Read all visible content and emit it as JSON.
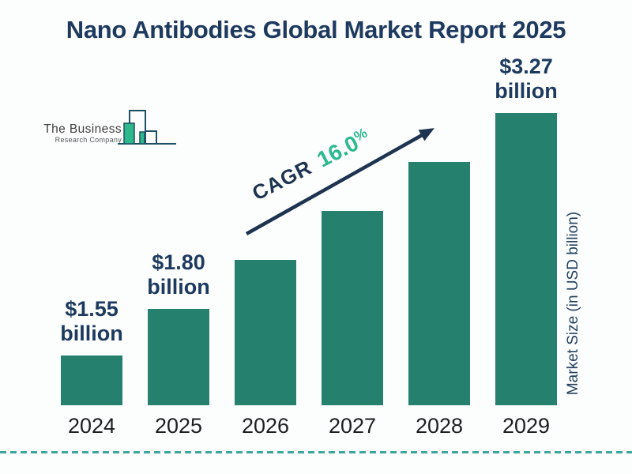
{
  "title": "Nano Antibodies Global Market Report 2025",
  "logo": {
    "name_line1": "The Business",
    "name_line2": "Research Company"
  },
  "annotation": {
    "cagr_label": "CAGR",
    "cagr_value": "16.0",
    "cagr_percent_sign": "%"
  },
  "y_axis_label": "Market Size (in USD billion)",
  "colors": {
    "bar": "#26806E",
    "title_text": "#1D3A5E",
    "value_label_text": "#1D3A5E",
    "year_label_text": "#1C1E21",
    "cagr_green": "#2DB98C",
    "arrow_navy": "#1E3350",
    "dashed_line": "#3EA79D",
    "logo_green": "#2DB98C",
    "logo_outline": "#1E4F63"
  },
  "chart_data": {
    "type": "bar",
    "title": "Nano Antibodies Global Market Report 2025",
    "categories": [
      "2024",
      "2025",
      "2026",
      "2027",
      "2028",
      "2029"
    ],
    "values": [
      1.55,
      1.8,
      2.09,
      2.42,
      2.81,
      3.27
    ],
    "unit": "USD billion",
    "xlabel": "",
    "ylabel": "Market Size (in USD billion)",
    "bar_value_labels": [
      {
        "category": "2024",
        "line1": "$1.55",
        "line2": "billion"
      },
      {
        "category": "2025",
        "line1": "$1.80",
        "line2": "billion"
      },
      {
        "category": "2029",
        "line1": "$3.27",
        "line2": "billion"
      }
    ],
    "annotations": [
      {
        "type": "growth-arrow",
        "text": "CAGR 16.0%"
      }
    ],
    "legend": false,
    "gridlines": false,
    "bar_color": "#26806E"
  }
}
